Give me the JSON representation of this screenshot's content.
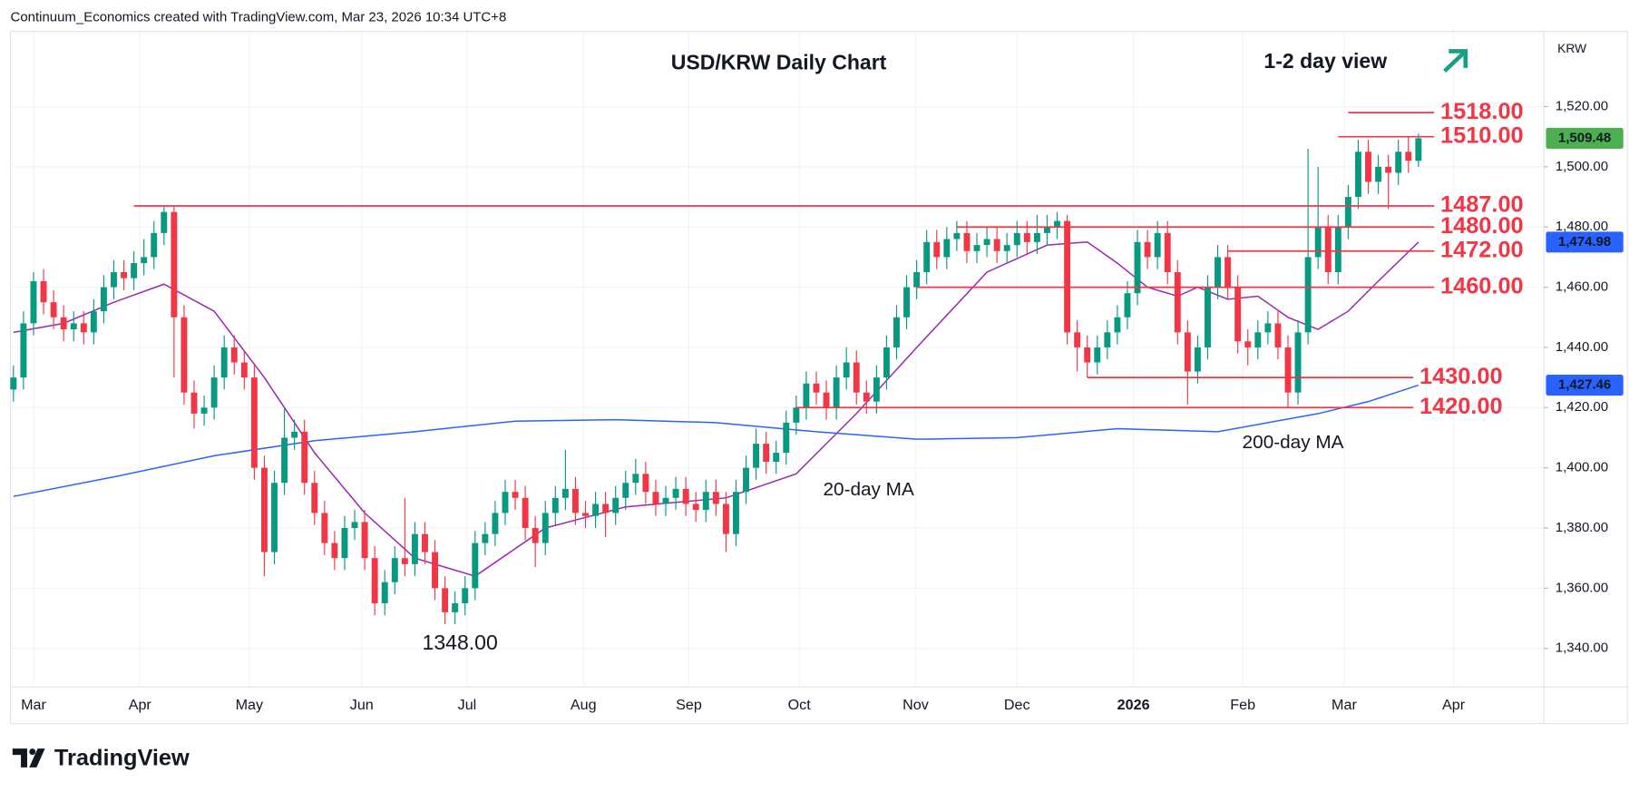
{
  "chart_data": {
    "type": "candlestick",
    "header": "Continuum_Economics created with TradingView.com, Mar 23, 2026 10:34 UTC+8",
    "title": "USD/KRW Daily Chart",
    "subtitle": "1-2 day view",
    "unit": "KRW",
    "footer": "TradingView",
    "grid": true,
    "up_color": "#089981",
    "down_color": "#f23645",
    "xlim": [
      -0.3,
      152.5
    ],
    "xticks": [
      {
        "value": 2,
        "label": "Mar"
      },
      {
        "value": 12.6,
        "label": "Apr"
      },
      {
        "value": 23.5,
        "label": "May"
      },
      {
        "value": 34.7,
        "label": "Jun"
      },
      {
        "value": 45.2,
        "label": "Jul"
      },
      {
        "value": 56.8,
        "label": "Aug"
      },
      {
        "value": 67.3,
        "label": "Sep"
      },
      {
        "value": 78.3,
        "label": "Oct"
      },
      {
        "value": 89.9,
        "label": "Nov"
      },
      {
        "value": 100,
        "label": "Dec"
      },
      {
        "value": 111.6,
        "label": "2026"
      },
      {
        "value": 122.5,
        "label": "Feb"
      },
      {
        "value": 132.6,
        "label": "Mar"
      },
      {
        "value": 143.5,
        "label": "Apr"
      }
    ],
    "ylim": [
      1327.2,
      1545
    ],
    "yticks": [
      {
        "value": 1340,
        "label": "1,340.00"
      },
      {
        "value": 1360,
        "label": "1,360.00"
      },
      {
        "value": 1380,
        "label": "1,380.00"
      },
      {
        "value": 1400,
        "label": "1,400.00"
      },
      {
        "value": 1420,
        "label": "1,420.00"
      },
      {
        "value": 1440,
        "label": "1,440.00"
      },
      {
        "value": 1460,
        "label": "1,460.00"
      },
      {
        "value": 1480,
        "label": "1,480.00"
      },
      {
        "value": 1500,
        "label": "1,500.00"
      },
      {
        "value": 1520,
        "label": "1,520.00"
      }
    ],
    "series": [
      {
        "tag_color": "#4caf50",
        "last_label": "1,509.48",
        "values": [
          [
            1426,
            1434,
            1422,
            1430
          ],
          [
            1430,
            1452,
            1426,
            1448
          ],
          [
            1448,
            1465,
            1444,
            1462
          ],
          [
            1462,
            1466,
            1451,
            1455
          ],
          [
            1455,
            1459,
            1446,
            1450
          ],
          [
            1450,
            1454,
            1442,
            1446
          ],
          [
            1446,
            1452,
            1442,
            1448
          ],
          [
            1448,
            1452,
            1441,
            1445
          ],
          [
            1445,
            1456,
            1441,
            1452
          ],
          [
            1452,
            1464,
            1448,
            1460
          ],
          [
            1460,
            1469,
            1456,
            1465
          ],
          [
            1465,
            1469,
            1459,
            1463
          ],
          [
            1463,
            1472,
            1459,
            1468
          ],
          [
            1468,
            1476,
            1464,
            1470
          ],
          [
            1470,
            1482,
            1466,
            1478
          ],
          [
            1478,
            1487,
            1474,
            1485
          ],
          [
            1485,
            1487,
            1430,
            1450
          ],
          [
            1450,
            1454,
            1421,
            1425
          ],
          [
            1425,
            1429,
            1413,
            1418
          ],
          [
            1418,
            1424,
            1414,
            1420
          ],
          [
            1420,
            1434,
            1416,
            1430
          ],
          [
            1430,
            1444,
            1426,
            1440
          ],
          [
            1440,
            1444,
            1431,
            1435
          ],
          [
            1435,
            1439,
            1426,
            1430
          ],
          [
            1430,
            1434,
            1396,
            1400
          ],
          [
            1400,
            1404,
            1364,
            1372
          ],
          [
            1372,
            1399,
            1368,
            1395
          ],
          [
            1395,
            1420,
            1391,
            1410
          ],
          [
            1410,
            1416,
            1406,
            1412
          ],
          [
            1412,
            1416,
            1391,
            1395
          ],
          [
            1395,
            1399,
            1381,
            1385
          ],
          [
            1385,
            1389,
            1371,
            1375
          ],
          [
            1375,
            1379,
            1366,
            1370
          ],
          [
            1370,
            1384,
            1366,
            1380
          ],
          [
            1380,
            1386,
            1376,
            1382
          ],
          [
            1382,
            1386,
            1366,
            1370
          ],
          [
            1370,
            1374,
            1351,
            1355
          ],
          [
            1355,
            1366,
            1351,
            1362
          ],
          [
            1362,
            1374,
            1358,
            1370
          ],
          [
            1370,
            1390,
            1364,
            1368
          ],
          [
            1368,
            1382,
            1364,
            1378
          ],
          [
            1378,
            1382,
            1368,
            1372
          ],
          [
            1372,
            1376,
            1356,
            1360
          ],
          [
            1360,
            1364,
            1348,
            1352
          ],
          [
            1352,
            1359,
            1348,
            1355
          ],
          [
            1355,
            1364,
            1351,
            1360
          ],
          [
            1360,
            1379,
            1356,
            1375
          ],
          [
            1375,
            1382,
            1371,
            1378
          ],
          [
            1378,
            1389,
            1374,
            1385
          ],
          [
            1385,
            1396,
            1381,
            1392
          ],
          [
            1392,
            1396,
            1386,
            1390
          ],
          [
            1390,
            1394,
            1376,
            1380
          ],
          [
            1380,
            1384,
            1367,
            1375
          ],
          [
            1375,
            1389,
            1371,
            1385
          ],
          [
            1385,
            1394,
            1381,
            1390
          ],
          [
            1390,
            1406,
            1386,
            1393
          ],
          [
            1393,
            1397,
            1381,
            1385
          ],
          [
            1385,
            1389,
            1380,
            1384
          ],
          [
            1384,
            1392,
            1380,
            1388
          ],
          [
            1388,
            1392,
            1377,
            1385
          ],
          [
            1385,
            1394,
            1381,
            1390
          ],
          [
            1390,
            1399,
            1386,
            1395
          ],
          [
            1395,
            1403,
            1391,
            1398
          ],
          [
            1398,
            1402,
            1388,
            1392
          ],
          [
            1392,
            1396,
            1384,
            1388
          ],
          [
            1388,
            1394,
            1384,
            1390
          ],
          [
            1390,
            1397,
            1386,
            1393
          ],
          [
            1393,
            1397,
            1384,
            1388
          ],
          [
            1388,
            1392,
            1382,
            1386
          ],
          [
            1386,
            1396,
            1382,
            1392
          ],
          [
            1392,
            1396,
            1384,
            1388
          ],
          [
            1388,
            1392,
            1372,
            1378
          ],
          [
            1378,
            1396,
            1374,
            1392
          ],
          [
            1392,
            1404,
            1388,
            1400
          ],
          [
            1400,
            1413,
            1396,
            1408
          ],
          [
            1408,
            1412,
            1398,
            1402
          ],
          [
            1402,
            1409,
            1398,
            1405
          ],
          [
            1405,
            1419,
            1401,
            1415
          ],
          [
            1415,
            1424,
            1411,
            1420
          ],
          [
            1420,
            1432,
            1416,
            1428
          ],
          [
            1428,
            1432,
            1421,
            1425
          ],
          [
            1425,
            1429,
            1416,
            1420
          ],
          [
            1420,
            1434,
            1416,
            1430
          ],
          [
            1430,
            1440,
            1426,
            1435
          ],
          [
            1435,
            1439,
            1421,
            1425
          ],
          [
            1425,
            1429,
            1418,
            1422
          ],
          [
            1422,
            1434,
            1418,
            1430
          ],
          [
            1430,
            1444,
            1426,
            1440
          ],
          [
            1440,
            1454,
            1436,
            1450
          ],
          [
            1450,
            1464,
            1446,
            1460
          ],
          [
            1460,
            1469,
            1456,
            1465
          ],
          [
            1465,
            1479,
            1461,
            1475
          ],
          [
            1475,
            1479,
            1466,
            1470
          ],
          [
            1470,
            1480,
            1466,
            1476
          ],
          [
            1476,
            1482,
            1472,
            1478
          ],
          [
            1478,
            1482,
            1468,
            1472
          ],
          [
            1472,
            1478,
            1468,
            1474
          ],
          [
            1474,
            1480,
            1470,
            1476
          ],
          [
            1476,
            1480,
            1468,
            1472
          ],
          [
            1472,
            1478,
            1468,
            1474
          ],
          [
            1474,
            1482,
            1470,
            1478
          ],
          [
            1478,
            1482,
            1471,
            1475
          ],
          [
            1475,
            1484,
            1471,
            1478
          ],
          [
            1478,
            1484,
            1474,
            1480
          ],
          [
            1480,
            1485,
            1476,
            1482
          ],
          [
            1482,
            1484,
            1441,
            1445
          ],
          [
            1445,
            1449,
            1432,
            1440
          ],
          [
            1440,
            1444,
            1430,
            1435
          ],
          [
            1435,
            1444,
            1431,
            1440
          ],
          [
            1440,
            1449,
            1436,
            1445
          ],
          [
            1445,
            1454,
            1441,
            1450
          ],
          [
            1450,
            1462,
            1446,
            1458
          ],
          [
            1458,
            1479,
            1454,
            1475
          ],
          [
            1475,
            1479,
            1466,
            1470
          ],
          [
            1470,
            1482,
            1466,
            1478
          ],
          [
            1478,
            1482,
            1461,
            1465
          ],
          [
            1465,
            1469,
            1441,
            1445
          ],
          [
            1445,
            1449,
            1421,
            1432
          ],
          [
            1432,
            1444,
            1428,
            1440
          ],
          [
            1440,
            1464,
            1436,
            1460
          ],
          [
            1460,
            1474,
            1456,
            1470
          ],
          [
            1470,
            1474,
            1456,
            1460
          ],
          [
            1460,
            1464,
            1438,
            1442
          ],
          [
            1442,
            1446,
            1434,
            1440
          ],
          [
            1440,
            1449,
            1436,
            1445
          ],
          [
            1445,
            1452,
            1441,
            1448
          ],
          [
            1448,
            1452,
            1436,
            1440
          ],
          [
            1440,
            1444,
            1420,
            1425
          ],
          [
            1425,
            1449,
            1421,
            1445
          ],
          [
            1445,
            1506,
            1441,
            1470
          ],
          [
            1470,
            1500,
            1466,
            1480
          ],
          [
            1480,
            1484,
            1461,
            1465
          ],
          [
            1465,
            1484,
            1461,
            1480
          ],
          [
            1480,
            1494,
            1476,
            1490
          ],
          [
            1490,
            1509,
            1486,
            1505
          ],
          [
            1505,
            1509,
            1491,
            1495
          ],
          [
            1495,
            1504,
            1491,
            1500
          ],
          [
            1500,
            1504,
            1486,
            1498
          ],
          [
            1498,
            1509,
            1494,
            1505
          ],
          [
            1505,
            1510,
            1498,
            1502
          ],
          [
            1502,
            1511,
            1500,
            1509.48
          ]
        ]
      }
    ],
    "lines": [
      {
        "name": "20-day MA",
        "color": "#9c27b0",
        "tag_color": "#2962ff",
        "last_label": "1,474.98",
        "x": [
          0,
          5,
          10,
          15,
          20,
          25,
          30,
          35,
          40,
          46,
          53,
          61,
          71,
          78,
          84,
          90,
          97,
          103,
          107,
          110,
          113,
          116,
          118,
          121,
          124,
          127,
          130,
          133,
          136,
          140
        ],
        "values": [
          1445,
          1448,
          1455,
          1461,
          1452,
          1430,
          1405,
          1385,
          1370,
          1364,
          1380,
          1387,
          1390,
          1398,
          1418,
          1440,
          1465,
          1474,
          1475,
          1468,
          1460,
          1457,
          1460,
          1456,
          1457,
          1450,
          1446,
          1452,
          1462,
          1474.98
        ]
      },
      {
        "name": "200-day MA",
        "color": "#2962ff",
        "tag_color": "#2962ff",
        "last_label": "1,427.46",
        "x": [
          0,
          10,
          20,
          30,
          40,
          50,
          60,
          70,
          80,
          90,
          100,
          110,
          120,
          130,
          135,
          140
        ],
        "values": [
          1390.5,
          1397,
          1404,
          1409,
          1412,
          1415.5,
          1416,
          1415,
          1412,
          1409.5,
          1410,
          1413,
          1412,
          1418,
          1422,
          1427.46
        ]
      }
    ],
    "levels": [
      {
        "value": 1518,
        "label": "1518.00"
      },
      {
        "value": 1510,
        "label": "1510.00"
      },
      {
        "value": 1487,
        "label": "1487.00"
      },
      {
        "value": 1480,
        "label": "1480.00"
      },
      {
        "value": 1472,
        "label": "1472.00"
      },
      {
        "value": 1460,
        "label": "1460.00"
      },
      {
        "value": 1430,
        "label": "1430.00"
      },
      {
        "value": 1420,
        "label": "1420.00"
      }
    ],
    "annotations": [
      {
        "value": 1348,
        "label": "1348.00"
      }
    ]
  }
}
